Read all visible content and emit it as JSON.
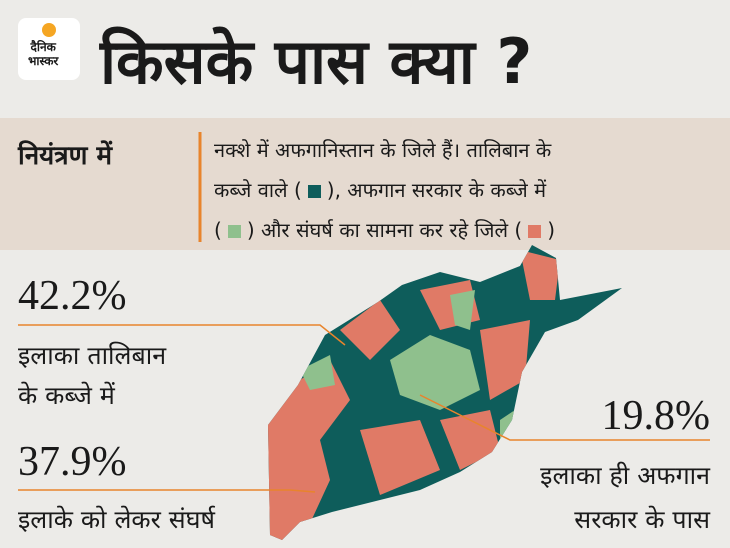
{
  "logo": {
    "line1": "दैनिक",
    "line2": "भास्कर"
  },
  "title": "किसके पास क्या ?",
  "legend_box": {
    "label": "नियंत्रण में",
    "line1": "नक्शे में अफगानिस्तान के जिले हैं। तालिबान के",
    "line2a": "कब्जे वाले (",
    "line2b": "), अफगान सरकार के कब्जे में",
    "line3a": "(",
    "line3b": ") और संघर्ष का सामना कर रहे जिले (",
    "line3c": ")"
  },
  "stats": [
    {
      "value": "42.2%",
      "line1": "इलाका तालिबान",
      "line2": "के कब्जे में"
    },
    {
      "value": "37.9%",
      "line1": "इलाके को लेकर संघर्ष"
    },
    {
      "value": "19.8%",
      "line1": "इलाका ही अफगान",
      "line2": "सरकार के पास"
    }
  ]
}
